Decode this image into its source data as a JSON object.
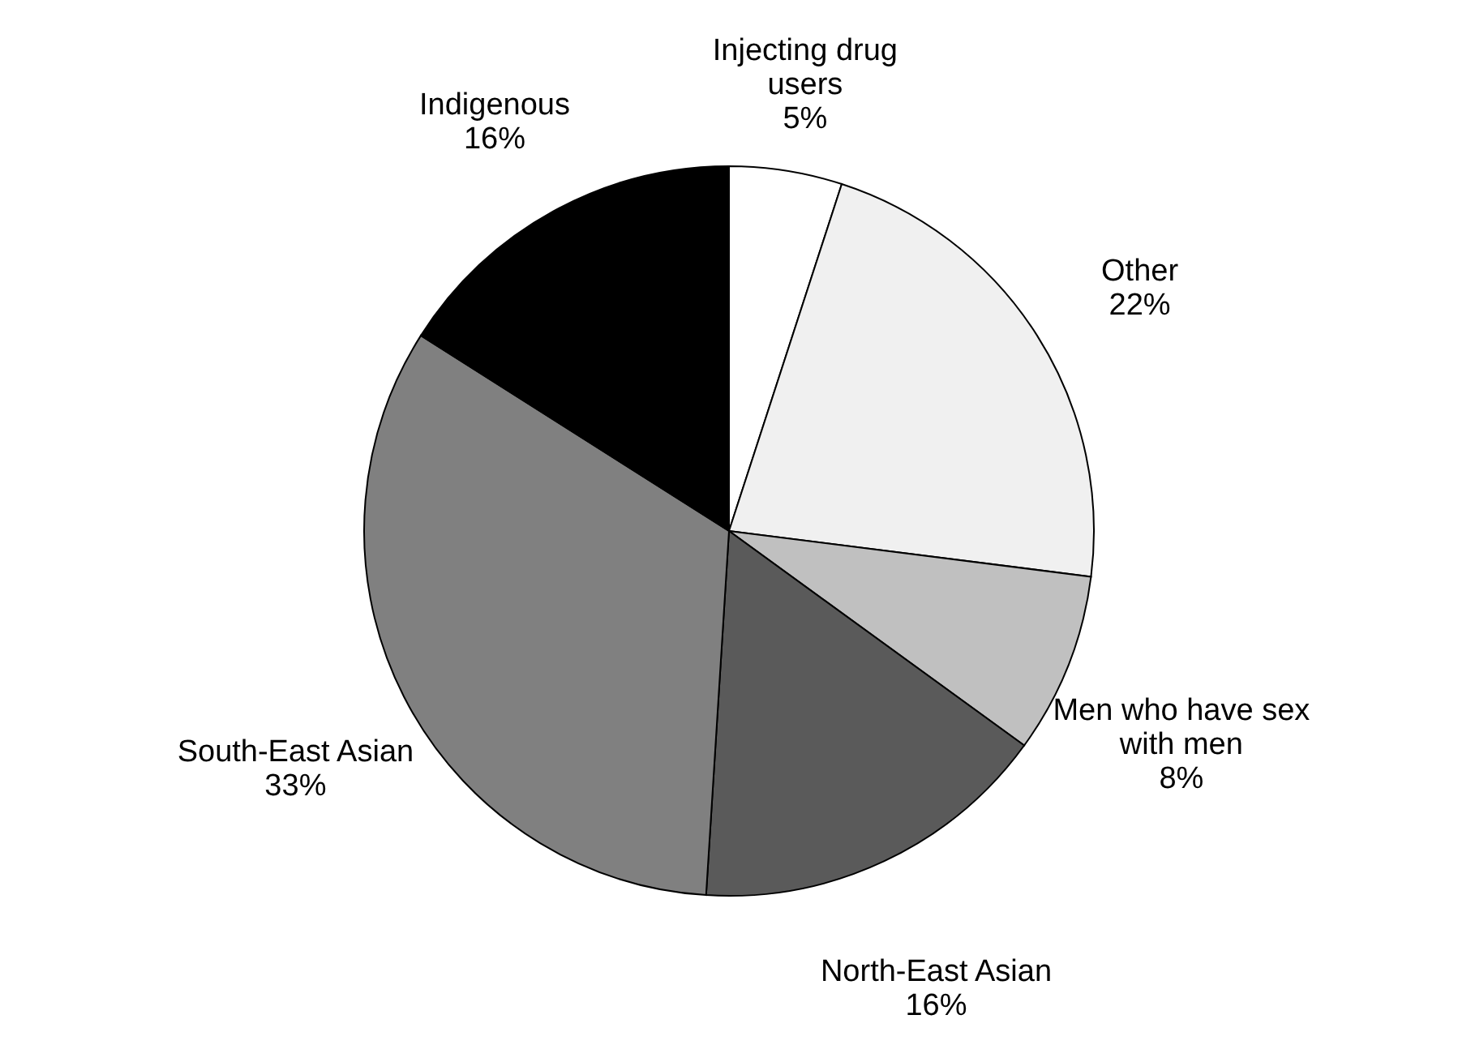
{
  "chart_data": {
    "type": "pie",
    "categories": [
      "Injecting drug users",
      "Other",
      "Men who have sex with men",
      "North-East Asian",
      "South-East Asian",
      "Indigenous"
    ],
    "values": [
      5,
      22,
      8,
      16,
      33,
      16
    ],
    "value_labels": [
      "5%",
      "22%",
      "8%",
      "16%",
      "33%",
      "16%"
    ],
    "colors": [
      "#ffffff",
      "#f0f0f0",
      "#c0c0c0",
      "#5a5a5a",
      "#808080",
      "#000000"
    ],
    "legend": false
  }
}
